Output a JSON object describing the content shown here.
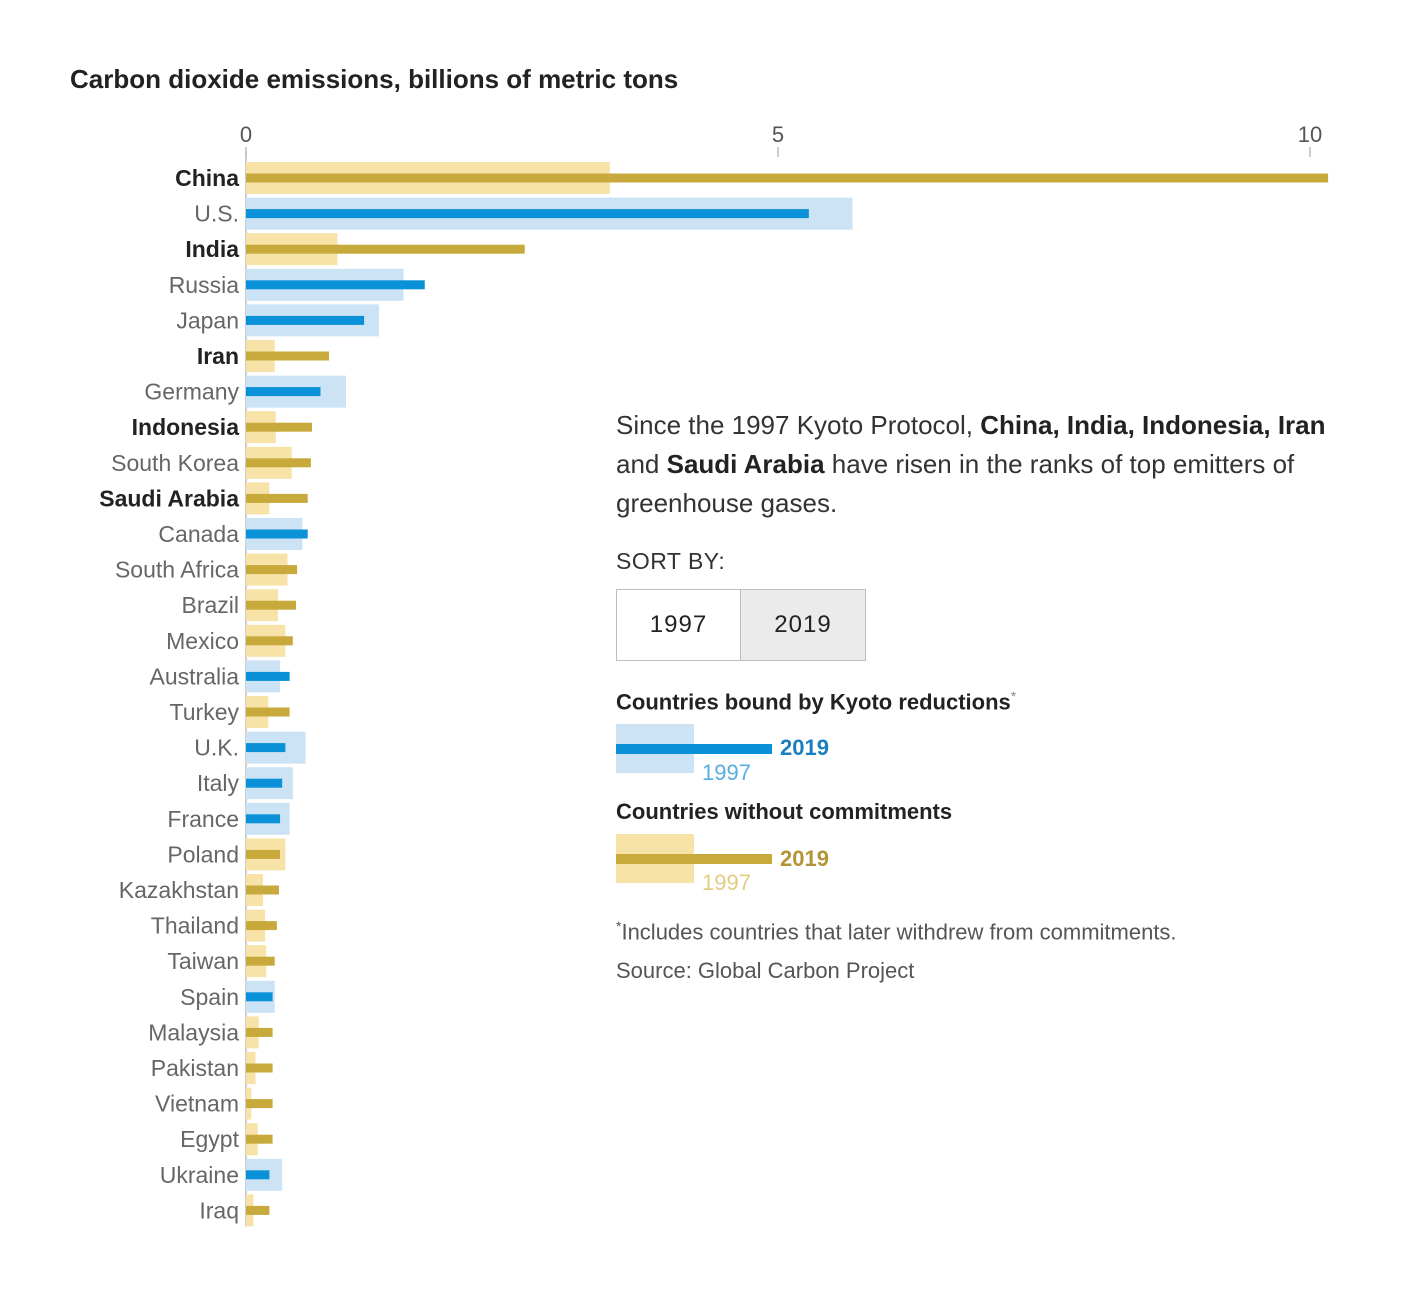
{
  "title": "Carbon dioxide emissions, billions of metric tons",
  "description": {
    "p1": "Since the 1997 Kyoto Protocol, ",
    "bold1": "China, India, Indonesia, Iran",
    "p2": " and ",
    "bold2": "Saudi Arabia",
    "p3": " have risen in the ranks of top emitters of greenhouse gases."
  },
  "sort": {
    "label": "SORT BY:",
    "options": [
      "1997",
      "2019"
    ],
    "selected": "2019"
  },
  "legend": {
    "bound": {
      "title": "Countries bound by Kyoto reductions",
      "marker": "*",
      "label_2019": "2019",
      "label_1997": "1997"
    },
    "without": {
      "title": "Countries without commitments",
      "label_2019": "2019",
      "label_1997": "1997"
    }
  },
  "footnote": {
    "marker": "*",
    "text": "Includes countries that later withdrew from commitments."
  },
  "source": "Source: Global Carbon Project",
  "colors": {
    "bound_2019": "#0a91d8",
    "bound_1997": "#cce3f5",
    "without_2019": "#c8a93c",
    "without_1997": "#f7e3a8",
    "bound_text_2019": "#1a7fbf",
    "bound_text_1997": "#55aee0",
    "without_text_2019": "#b39536",
    "without_text_1997": "#e3cc82"
  },
  "chart_data": {
    "type": "bar",
    "orientation": "horizontal",
    "x_ticks": [
      0,
      5,
      10
    ],
    "xlim": [
      0,
      10.2
    ],
    "series": [
      {
        "name": "1997"
      },
      {
        "name": "2019"
      }
    ],
    "rows": [
      {
        "country": "China",
        "group": "without",
        "highlight": true,
        "v1997": 3.42,
        "v2019": 10.17
      },
      {
        "country": "U.S.",
        "group": "bound",
        "highlight": false,
        "v1997": 5.7,
        "v2019": 5.29
      },
      {
        "country": "India",
        "group": "without",
        "highlight": true,
        "v1997": 0.86,
        "v2019": 2.62
      },
      {
        "country": "Russia",
        "group": "bound",
        "highlight": false,
        "v1997": 1.48,
        "v2019": 1.68
      },
      {
        "country": "Japan",
        "group": "bound",
        "highlight": false,
        "v1997": 1.25,
        "v2019": 1.11
      },
      {
        "country": "Iran",
        "group": "without",
        "highlight": true,
        "v1997": 0.27,
        "v2019": 0.78
      },
      {
        "country": "Germany",
        "group": "bound",
        "highlight": false,
        "v1997": 0.94,
        "v2019": 0.7
      },
      {
        "country": "Indonesia",
        "group": "without",
        "highlight": true,
        "v1997": 0.28,
        "v2019": 0.62
      },
      {
        "country": "South Korea",
        "group": "without",
        "highlight": false,
        "v1997": 0.43,
        "v2019": 0.61
      },
      {
        "country": "Saudi Arabia",
        "group": "without",
        "highlight": true,
        "v1997": 0.22,
        "v2019": 0.58
      },
      {
        "country": "Canada",
        "group": "bound",
        "highlight": false,
        "v1997": 0.53,
        "v2019": 0.58
      },
      {
        "country": "South Africa",
        "group": "without",
        "highlight": false,
        "v1997": 0.39,
        "v2019": 0.48
      },
      {
        "country": "Brazil",
        "group": "without",
        "highlight": false,
        "v1997": 0.3,
        "v2019": 0.47
      },
      {
        "country": "Mexico",
        "group": "without",
        "highlight": false,
        "v1997": 0.37,
        "v2019": 0.44
      },
      {
        "country": "Australia",
        "group": "bound",
        "highlight": false,
        "v1997": 0.32,
        "v2019": 0.41
      },
      {
        "country": "Turkey",
        "group": "without",
        "highlight": false,
        "v1997": 0.21,
        "v2019": 0.41
      },
      {
        "country": "U.K.",
        "group": "bound",
        "highlight": false,
        "v1997": 0.56,
        "v2019": 0.37
      },
      {
        "country": "Italy",
        "group": "bound",
        "highlight": false,
        "v1997": 0.44,
        "v2019": 0.34
      },
      {
        "country": "France",
        "group": "bound",
        "highlight": false,
        "v1997": 0.41,
        "v2019": 0.32
      },
      {
        "country": "Poland",
        "group": "without",
        "highlight": false,
        "v1997": 0.37,
        "v2019": 0.32
      },
      {
        "country": "Kazakhstan",
        "group": "without",
        "highlight": false,
        "v1997": 0.16,
        "v2019": 0.31
      },
      {
        "country": "Thailand",
        "group": "without",
        "highlight": false,
        "v1997": 0.18,
        "v2019": 0.29
      },
      {
        "country": "Taiwan",
        "group": "without",
        "highlight": false,
        "v1997": 0.19,
        "v2019": 0.27
      },
      {
        "country": "Spain",
        "group": "bound",
        "highlight": false,
        "v1997": 0.27,
        "v2019": 0.25
      },
      {
        "country": "Malaysia",
        "group": "without",
        "highlight": false,
        "v1997": 0.12,
        "v2019": 0.25
      },
      {
        "country": "Pakistan",
        "group": "without",
        "highlight": false,
        "v1997": 0.09,
        "v2019": 0.25
      },
      {
        "country": "Vietnam",
        "group": "without",
        "highlight": false,
        "v1997": 0.05,
        "v2019": 0.25
      },
      {
        "country": "Egypt",
        "group": "without",
        "highlight": false,
        "v1997": 0.11,
        "v2019": 0.25
      },
      {
        "country": "Ukraine",
        "group": "bound",
        "highlight": false,
        "v1997": 0.34,
        "v2019": 0.22
      },
      {
        "country": "Iraq",
        "group": "without",
        "highlight": false,
        "v1997": 0.07,
        "v2019": 0.22
      }
    ]
  }
}
